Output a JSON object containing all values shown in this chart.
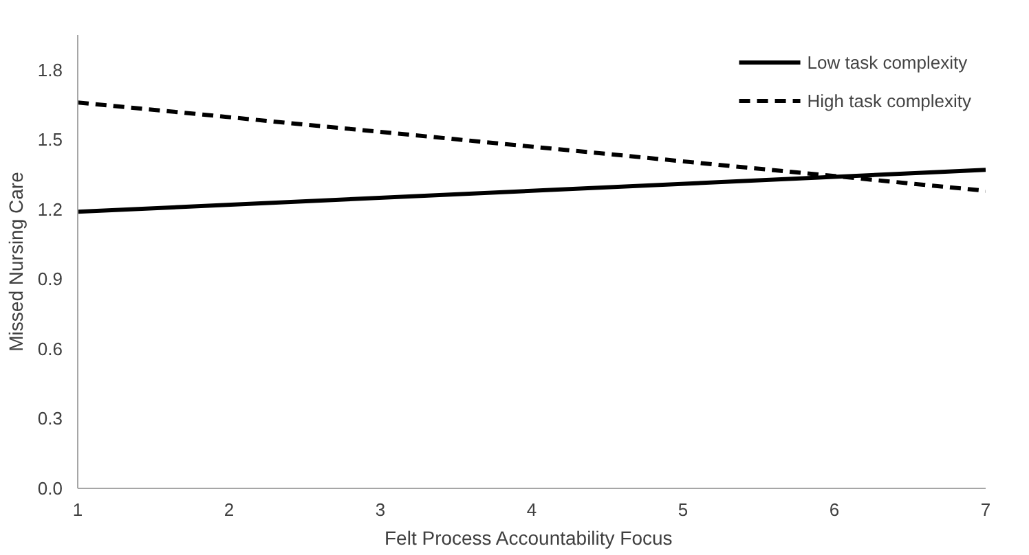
{
  "chart_data": {
    "type": "line",
    "xlabel": "Felt Process  Accountability Focus",
    "ylabel": "Missed Nursing Care",
    "x": [
      1,
      7
    ],
    "series": [
      {
        "name": "Low task complexity",
        "color": "#000000",
        "values": [
          1.19,
          1.37
        ],
        "line_style": "solid"
      },
      {
        "name": "High task complexity",
        "color": "#000000",
        "values": [
          1.66,
          1.28
        ],
        "line_style": "dashed"
      }
    ],
    "xlim": [
      1,
      7
    ],
    "xticks": [
      1,
      2,
      3,
      4,
      5,
      6,
      7
    ],
    "ylim": [
      0,
      1.95
    ],
    "yticks": [
      {
        "value": 0,
        "label": "0.0"
      },
      0.3,
      0.6,
      0.9,
      1.2,
      1.5,
      1.8
    ],
    "grid": false,
    "legend": "top right",
    "marker": "none"
  }
}
